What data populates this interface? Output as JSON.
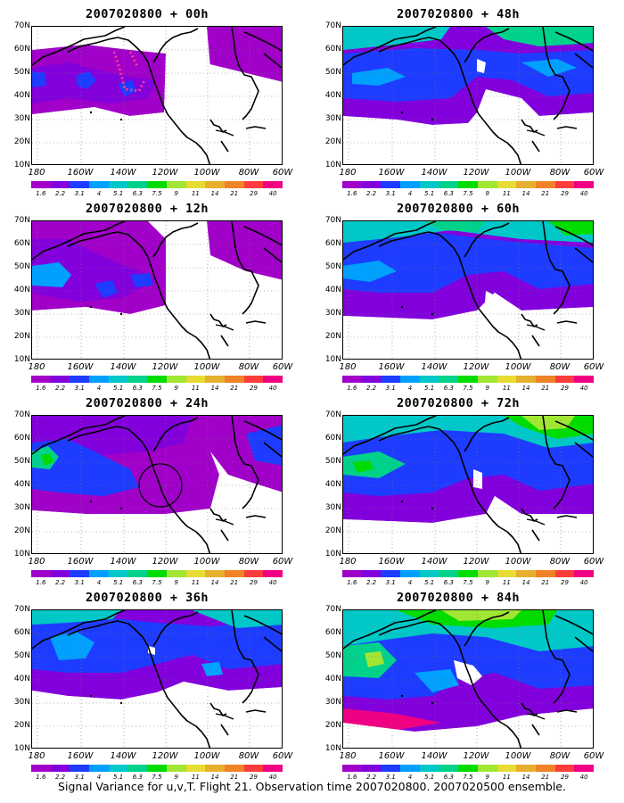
{
  "panels": [
    {
      "title": "2007020800 + 00h"
    },
    {
      "title": "2007020800 + 48h"
    },
    {
      "title": "2007020800 + 12h"
    },
    {
      "title": "2007020800 + 60h"
    },
    {
      "title": "2007020800 + 24h"
    },
    {
      "title": "2007020800 + 72h"
    },
    {
      "title": "2007020800 + 36h"
    },
    {
      "title": "2007020800 + 84h"
    }
  ],
  "y_axis_labels": [
    "70N",
    "60N",
    "50N",
    "40N",
    "30N",
    "20N",
    "10N"
  ],
  "x_axis_labels": [
    "180",
    "160W",
    "140W",
    "120W",
    "100W",
    "80W",
    "60W"
  ],
  "colorbar": {
    "labels": [
      "1.6",
      "2.2",
      "3.1",
      "4",
      "5.1",
      "6.3",
      "7.5",
      "9",
      "11",
      "14",
      "21",
      "29",
      "40"
    ],
    "colors": [
      "#a000c8",
      "#8200dc",
      "#1e3cff",
      "#00a0ff",
      "#00c8c8",
      "#00d28c",
      "#00dc00",
      "#a0e632",
      "#e6dc32",
      "#e6af2d",
      "#f08228",
      "#fa3c3c",
      "#f00082"
    ]
  },
  "caption": "Signal Variance for u,v,T. Flight 21. Observation time 2007020800. 2007020500 ensemble."
}
